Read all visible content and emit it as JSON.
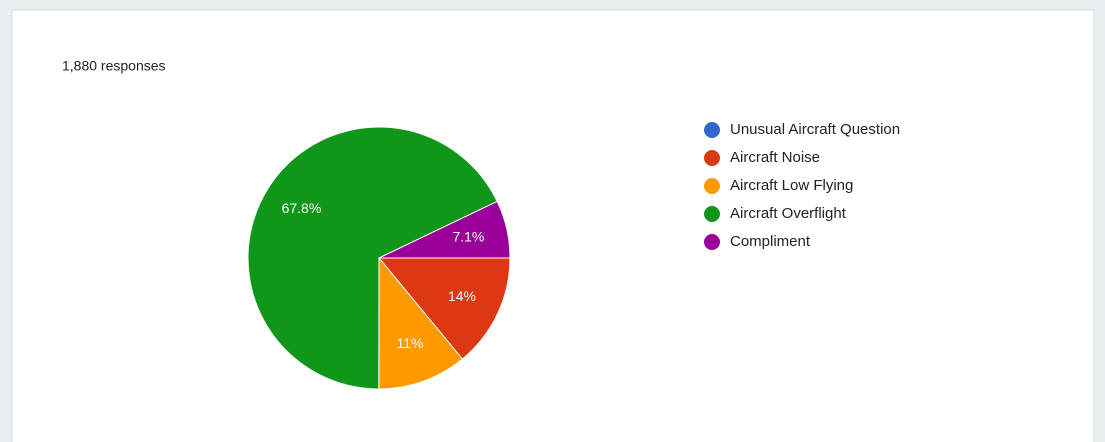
{
  "chart_data": {
    "type": "pie",
    "subtitle": "1,880 responses",
    "categories": [
      "Unusual Aircraft Question",
      "Aircraft Noise",
      "Aircraft Low Flying",
      "Aircraft Overflight",
      "Compliment"
    ],
    "values": [
      0,
      14,
      11,
      67.8,
      7.1
    ],
    "value_labels": [
      null,
      "14%",
      "11%",
      "67.8%",
      "7.1%"
    ],
    "colors": [
      "#3366cc",
      "#dc3912",
      "#ff9900",
      "#109618",
      "#990099"
    ],
    "legend": "right"
  }
}
